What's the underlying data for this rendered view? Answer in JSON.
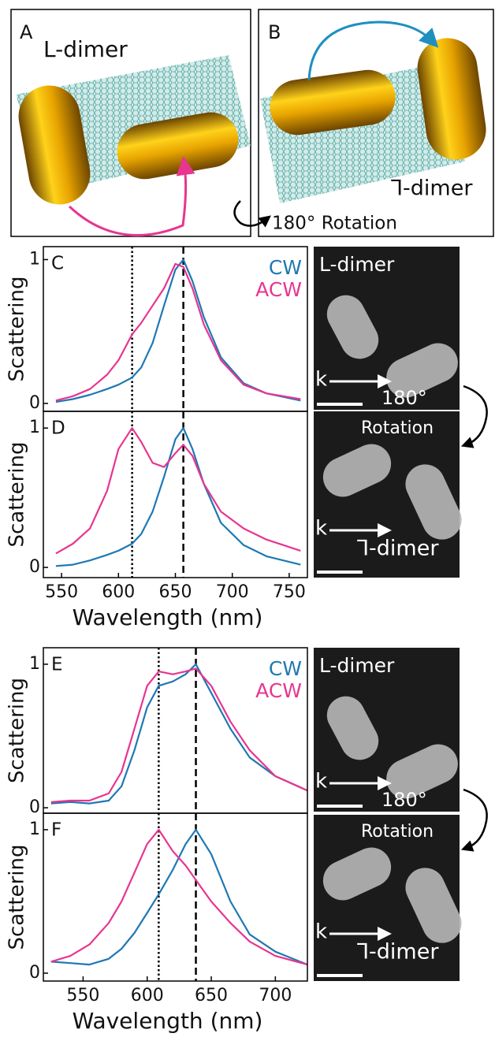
{
  "panels": {
    "A": {
      "letter": "A",
      "label": "L-dimer"
    },
    "B": {
      "letter": "B",
      "label": "⅂-dimer",
      "note": "180° Rotation"
    }
  },
  "sem": [
    {
      "title": "L-dimer",
      "k": "k",
      "note": "180°"
    },
    {
      "note": "Rotation",
      "k": "k",
      "caption": "⅂-dimer"
    },
    {
      "title": "L-dimer",
      "k": "k",
      "note": "180°"
    },
    {
      "note": "Rotation",
      "k": "k",
      "caption": "⅂-dimer"
    }
  ],
  "chart_data": [
    {
      "type": "line",
      "label": "C",
      "ylabel": "Scattering",
      "legend": "upper right",
      "x": [
        545,
        560,
        575,
        590,
        600,
        612,
        620,
        630,
        640,
        650,
        657,
        665,
        675,
        690,
        710,
        730,
        760
      ],
      "xlim": [
        534,
        766
      ],
      "ylim": [
        -0.055,
        1.09
      ],
      "yticks": [
        0,
        1
      ],
      "markers": [
        {
          "x": 612,
          "style": "dotted"
        },
        {
          "x": 657,
          "style": "dashed"
        }
      ],
      "series": [
        {
          "name": "CW",
          "color": "#1f78b4",
          "values": [
            0.01,
            0.03,
            0.06,
            0.1,
            0.13,
            0.18,
            0.25,
            0.42,
            0.68,
            0.93,
            1.0,
            0.85,
            0.6,
            0.32,
            0.14,
            0.07,
            0.02
          ]
        },
        {
          "name": "ACW",
          "color": "#e8358f",
          "values": [
            0.02,
            0.05,
            0.1,
            0.2,
            0.3,
            0.48,
            0.56,
            0.68,
            0.8,
            0.97,
            0.95,
            0.8,
            0.55,
            0.3,
            0.13,
            0.07,
            0.03
          ]
        }
      ]
    },
    {
      "type": "line",
      "label": "D",
      "ylabel": "Scattering",
      "xlabel": "Wavelength (nm)",
      "x": [
        545,
        560,
        575,
        590,
        600,
        612,
        620,
        630,
        640,
        650,
        657,
        665,
        675,
        690,
        710,
        730,
        760
      ],
      "xlim": [
        534,
        766
      ],
      "ylim": [
        -0.073,
        1.12
      ],
      "yticks": [
        0,
        1
      ],
      "xticks": [
        550,
        600,
        650,
        700,
        750
      ],
      "markers": [
        {
          "x": 612,
          "style": "dotted"
        },
        {
          "x": 657,
          "style": "dashed"
        }
      ],
      "series": [
        {
          "color": "#1f78b4",
          "values": [
            0.01,
            0.02,
            0.05,
            0.09,
            0.12,
            0.17,
            0.24,
            0.4,
            0.65,
            0.92,
            1.0,
            0.85,
            0.6,
            0.32,
            0.16,
            0.08,
            0.02
          ]
        },
        {
          "color": "#e8358f",
          "values": [
            0.1,
            0.17,
            0.28,
            0.55,
            0.85,
            1.0,
            0.9,
            0.75,
            0.72,
            0.82,
            0.88,
            0.8,
            0.6,
            0.4,
            0.28,
            0.2,
            0.12
          ]
        }
      ]
    },
    {
      "type": "line",
      "label": "E",
      "ylabel": "Scattering",
      "legend": "upper right",
      "x": [
        525,
        540,
        555,
        570,
        580,
        590,
        600,
        609,
        620,
        630,
        638,
        650,
        665,
        680,
        700,
        725
      ],
      "xlim": [
        519,
        725
      ],
      "ylim": [
        -0.038,
        1.115
      ],
      "yticks": [
        0,
        1
      ],
      "markers": [
        {
          "x": 609,
          "style": "dotted"
        },
        {
          "x": 638,
          "style": "dashed"
        }
      ],
      "series": [
        {
          "name": "CW",
          "color": "#1f78b4",
          "values": [
            0.03,
            0.04,
            0.03,
            0.05,
            0.15,
            0.4,
            0.7,
            0.85,
            0.88,
            0.93,
            1.0,
            0.8,
            0.55,
            0.35,
            0.22,
            0.12
          ]
        },
        {
          "name": "ACW",
          "color": "#e8358f",
          "values": [
            0.04,
            0.05,
            0.05,
            0.1,
            0.25,
            0.55,
            0.85,
            0.95,
            0.93,
            0.95,
            0.97,
            0.85,
            0.6,
            0.4,
            0.22,
            0.12
          ]
        }
      ]
    },
    {
      "type": "line",
      "label": "F",
      "ylabel": "Scattering",
      "xlabel": "Wavelength (nm)",
      "x": [
        525,
        540,
        555,
        570,
        580,
        590,
        600,
        609,
        620,
        630,
        638,
        650,
        665,
        680,
        700,
        725
      ],
      "xlim": [
        519,
        725
      ],
      "ylim": [
        -0.055,
        1.115
      ],
      "yticks": [
        0,
        1
      ],
      "xticks": [
        550,
        600,
        650,
        700
      ],
      "markers": [
        {
          "x": 609,
          "style": "dotted"
        },
        {
          "x": 638,
          "style": "dashed"
        }
      ],
      "series": [
        {
          "color": "#1f78b4",
          "values": [
            0.08,
            0.07,
            0.06,
            0.1,
            0.17,
            0.28,
            0.42,
            0.55,
            0.72,
            0.9,
            1.0,
            0.83,
            0.5,
            0.27,
            0.15,
            0.06
          ]
        },
        {
          "color": "#e8358f",
          "values": [
            0.08,
            0.12,
            0.2,
            0.35,
            0.5,
            0.7,
            0.9,
            1.0,
            0.85,
            0.75,
            0.65,
            0.5,
            0.35,
            0.22,
            0.12,
            0.06
          ]
        }
      ]
    }
  ]
}
